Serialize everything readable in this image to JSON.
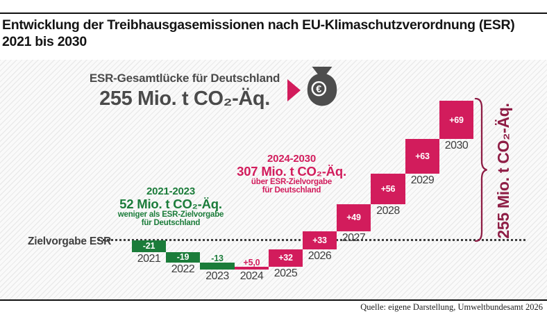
{
  "title": {
    "line1": "Entwicklung der Treibhausgasemissionen nach EU-Klimaschutzverordnung (ESR)",
    "line2": "2021 bis 2030"
  },
  "header_callout": {
    "label": "ESR-Gesamtlücke für Deutschland",
    "value": "255 Mio. t CO₂-Äq.",
    "icons": [
      "arrow-right-triangle",
      "money-bag-euro"
    ]
  },
  "annotations": {
    "green": {
      "period": "2021-2023",
      "value": "52 Mio. t CO₂-Äq.",
      "line1": "weniger als ESR-Zielvorgabe",
      "line2": "für Deutschland"
    },
    "pink": {
      "period": "2024-2030",
      "value": "307 Mio. t CO₂-Äq.",
      "line1": "über ESR-Zielvorgabe",
      "line2": "für Deutschland"
    }
  },
  "baseline_label": "Zielvorgabe ESR",
  "bracket_label": "255 Mio. t CO₂-Äq.",
  "source": "Quelle: eigene Darstellung, Umweltbundesamt 2026",
  "colors": {
    "negative_green": "#1b7c3a",
    "positive_pink": "#d21c5c",
    "bracket_maroon": "#8e1d45",
    "headline_gray": "#4a4a4a",
    "year_gray": "#3d3d3d"
  },
  "chart_data": {
    "type": "waterfall",
    "title": "Entwicklung der Treibhausgasemissionen nach EU-Klimaschutzverordnung (ESR) 2021 bis 2030",
    "unit": "Mio. t CO₂-Äq.",
    "categories": [
      "2021",
      "2022",
      "2023",
      "2024",
      "2025",
      "2026",
      "2027",
      "2028",
      "2029",
      "2030"
    ],
    "values": [
      -21,
      -19,
      -13,
      5,
      32,
      33,
      49,
      56,
      63,
      69
    ],
    "value_labels": [
      "-21",
      "-19",
      "-13",
      "+5,0",
      "+32",
      "+33",
      "+49",
      "+56",
      "+63",
      "+69"
    ],
    "baseline": {
      "label": "Zielvorgabe ESR",
      "value": 0
    },
    "cumulative": [
      -21,
      -40,
      -53,
      -48,
      -16,
      17,
      66,
      122,
      185,
      254
    ],
    "total_gap": 255,
    "segment_sums": {
      "2021-2023": -52,
      "2024-2030": 307
    },
    "legend_position": "none",
    "grid": false
  }
}
